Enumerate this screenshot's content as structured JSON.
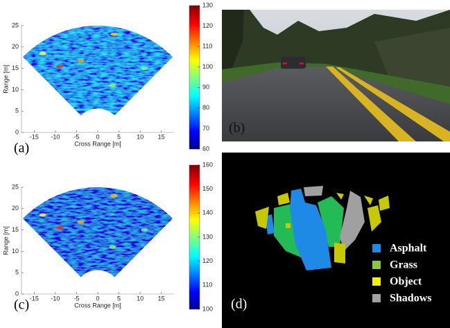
{
  "panels": {
    "a": {
      "label": "(a)",
      "xlabel": "Cross Range [m]",
      "ylabel": "Range [m]",
      "xlim": [
        -18,
        18
      ],
      "ylim": [
        0,
        25
      ],
      "xticks": [
        -15,
        -10,
        -5,
        0,
        5,
        10,
        15
      ],
      "yticks": [
        0,
        5,
        10,
        15,
        20,
        25
      ],
      "colorbar": {
        "lim": [
          60,
          130
        ],
        "ticks": [
          60,
          70,
          80,
          90,
          100,
          110,
          120,
          130
        ]
      }
    },
    "b": {
      "label": "(b)"
    },
    "c": {
      "label": "(c)",
      "xlabel": "Cross Range [m]",
      "ylabel": "Range [m]",
      "xlim": [
        -18,
        18
      ],
      "ylim": [
        0,
        25
      ],
      "xticks": [
        -15,
        -10,
        -5,
        0,
        5,
        10,
        15
      ],
      "yticks": [
        0,
        5,
        10,
        15,
        20,
        25
      ],
      "colorbar": {
        "lim": [
          100,
          160
        ],
        "ticks": [
          100,
          110,
          120,
          130,
          140,
          150,
          160
        ]
      }
    },
    "d": {
      "label": "(d)",
      "legend": [
        {
          "name": "Asphalt",
          "color": "#1e8ae6"
        },
        {
          "name": "Grass",
          "color": "#8cc63f"
        },
        {
          "name": "Object",
          "color": "#f2f200"
        },
        {
          "name": "Shadows",
          "color": "#a0a0a0"
        }
      ]
    }
  }
}
